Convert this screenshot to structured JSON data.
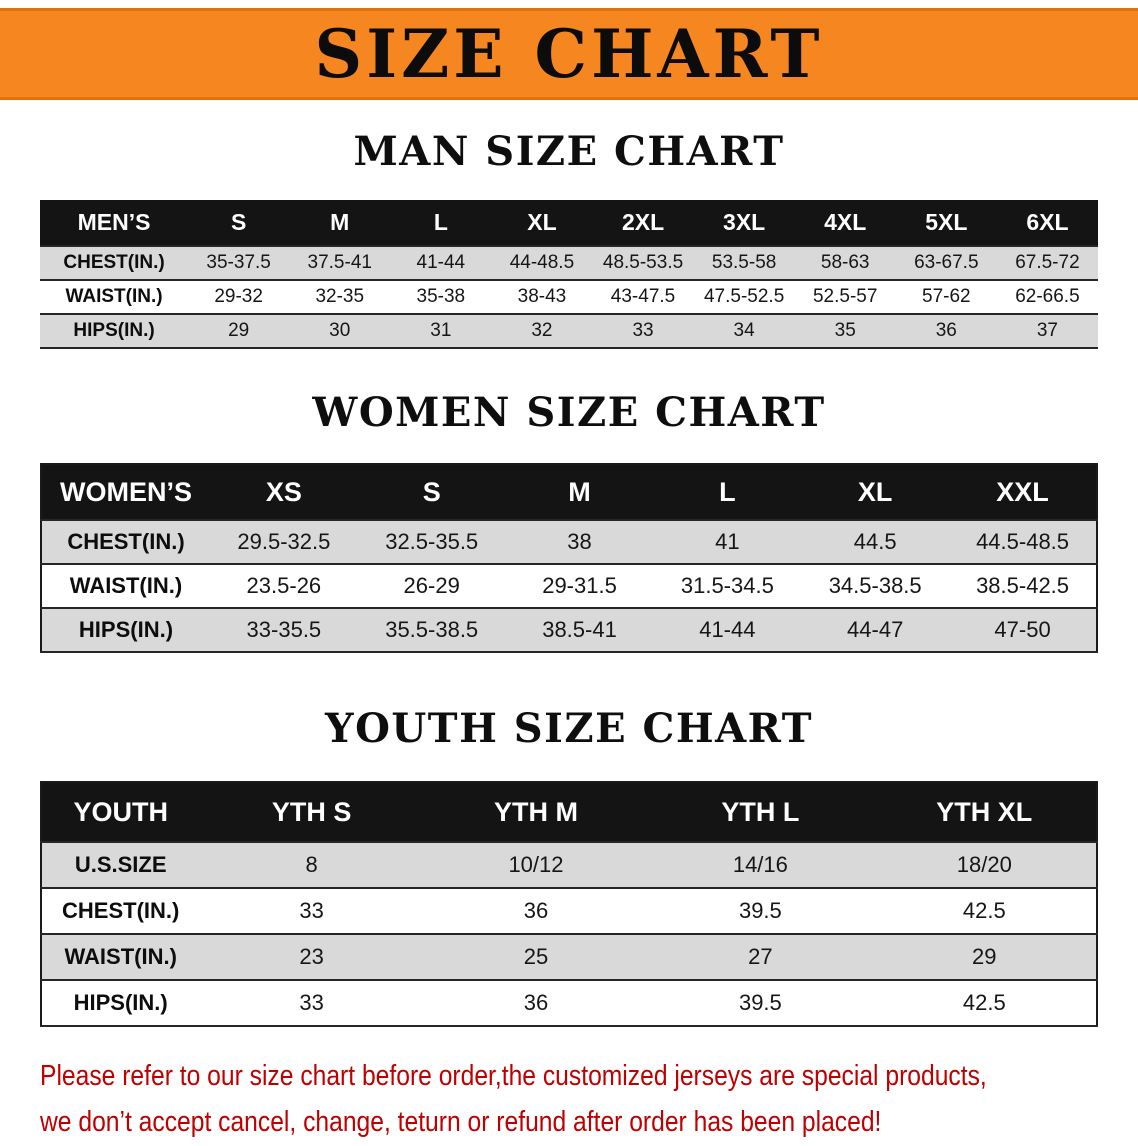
{
  "banner": {
    "title": "SIZE CHART"
  },
  "colors": {
    "banner_bg": "#f6861f",
    "table_header_bg": "#141414",
    "row_shade": "#d9d9d9",
    "note_red": "#c00000"
  },
  "men": {
    "heading": "MAN SIZE CHART",
    "table": {
      "header": [
        "MEN’S",
        "S",
        "M",
        "L",
        "XL",
        "2XL",
        "3XL",
        "4XL",
        "5XL",
        "6XL"
      ],
      "rows": [
        [
          "CHEST(IN.)",
          "35-37.5",
          "37.5-41",
          "41-44",
          "44-48.5",
          "48.5-53.5",
          "53.5-58",
          "58-63",
          "63-67.5",
          "67.5-72"
        ],
        [
          "WAIST(IN.)",
          "29-32",
          "32-35",
          "35-38",
          "38-43",
          "43-47.5",
          "47.5-52.5",
          "52.5-57",
          "57-62",
          "62-66.5"
        ],
        [
          "HIPS(IN.)",
          "29",
          "30",
          "31",
          "32",
          "33",
          "34",
          "35",
          "36",
          "37"
        ]
      ]
    }
  },
  "women": {
    "heading": "WOMEN SIZE CHART",
    "table": {
      "header": [
        "WOMEN’S",
        "XS",
        "S",
        "M",
        "L",
        "XL",
        "XXL"
      ],
      "rows": [
        [
          "CHEST(IN.)",
          "29.5-32.5",
          "32.5-35.5",
          "38",
          "41",
          "44.5",
          "44.5-48.5"
        ],
        [
          "WAIST(IN.)",
          "23.5-26",
          "26-29",
          "29-31.5",
          "31.5-34.5",
          "34.5-38.5",
          "38.5-42.5"
        ],
        [
          "HIPS(IN.)",
          "33-35.5",
          "35.5-38.5",
          "38.5-41",
          "41-44",
          "44-47",
          "47-50"
        ]
      ]
    }
  },
  "youth": {
    "heading": "YOUTH SIZE CHART",
    "table": {
      "header": [
        "YOUTH",
        "YTH S",
        "YTH M",
        "YTH L",
        "YTH XL"
      ],
      "rows": [
        [
          "U.S.SIZE",
          "8",
          "10/12",
          "14/16",
          "18/20"
        ],
        [
          "CHEST(IN.)",
          "33",
          "36",
          "39.5",
          "42.5"
        ],
        [
          "WAIST(IN.)",
          "23",
          "25",
          "27",
          "29"
        ],
        [
          "HIPS(IN.)",
          "33",
          "36",
          "39.5",
          "42.5"
        ]
      ]
    }
  },
  "note": {
    "line1": "Please refer to our size chart before order,the customized jerseys are special products,",
    "line2": "we don’t accept cancel, change, teturn or refund after order has been placed!"
  }
}
